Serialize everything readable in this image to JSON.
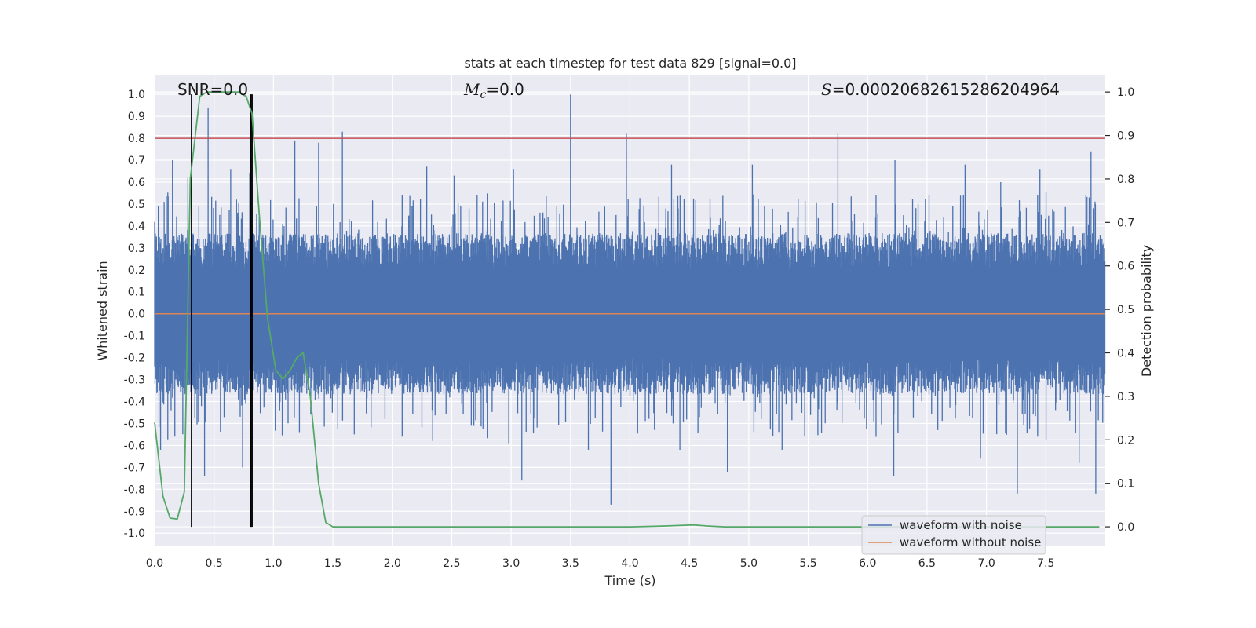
{
  "chart_data": {
    "type": "line",
    "title": "stats at each timestep for test data 829 [signal=0.0]",
    "xlabel": "Time (s)",
    "ylabel": "Whitened strain",
    "y2label": "Detection probability",
    "xlim": [
      0.0,
      8.0
    ],
    "ylim": [
      -1.06,
      1.09
    ],
    "y2lim": [
      -0.045,
      1.04
    ],
    "xticks": [
      "0.0",
      "0.5",
      "1.0",
      "1.5",
      "2.0",
      "2.5",
      "3.0",
      "3.5",
      "4.0",
      "4.5",
      "5.0",
      "5.5",
      "6.0",
      "6.5",
      "7.0",
      "7.5"
    ],
    "yticks": [
      "1.0",
      "0.9",
      "0.8",
      "0.7",
      "0.6",
      "0.5",
      "0.4",
      "0.3",
      "0.2",
      "0.1",
      "0.0",
      "-0.1",
      "-0.2",
      "-0.3",
      "-0.4",
      "-0.5",
      "-0.6",
      "-0.7",
      "-0.8",
      "-0.9",
      "-1.0"
    ],
    "y2ticks": [
      "1.0",
      "0.9",
      "0.8",
      "0.7",
      "0.6",
      "0.5",
      "0.4",
      "0.3",
      "0.2",
      "0.1",
      "0.0"
    ],
    "annotations": {
      "snr": "SNR=0.0",
      "mc_symbol": "M",
      "mc_sub": "c",
      "mc_value": "=0.0",
      "s_symbol": "S",
      "s_value": "=0.00020682615286204964"
    },
    "threshold": {
      "y": 0.8,
      "color": "#c44e52"
    },
    "vlines": [
      0.31,
      0.81,
      0.82
    ],
    "series": [
      {
        "name": "waveform with noise",
        "color": "#4c72b0",
        "description": "dense whitened noise, mostly within ±0.35",
        "spikes": [
          [
            0.08,
            0.51
          ],
          [
            0.15,
            0.7
          ],
          [
            0.28,
            0.62
          ],
          [
            0.31,
            0.68
          ],
          [
            0.45,
            0.94
          ],
          [
            0.64,
            0.66
          ],
          [
            0.8,
            0.64
          ],
          [
            1.18,
            0.79
          ],
          [
            1.38,
            0.78
          ],
          [
            1.58,
            0.83
          ],
          [
            2.29,
            0.67
          ],
          [
            2.52,
            0.63
          ],
          [
            3.02,
            0.66
          ],
          [
            3.5,
            1.0
          ],
          [
            3.97,
            0.82
          ],
          [
            4.35,
            0.68
          ],
          [
            5.03,
            0.68
          ],
          [
            5.75,
            0.82
          ],
          [
            6.23,
            0.7
          ],
          [
            6.82,
            0.68
          ],
          [
            7.12,
            0.6
          ],
          [
            7.45,
            0.66
          ],
          [
            7.88,
            0.74
          ],
          [
            0.05,
            -0.62
          ],
          [
            0.17,
            -0.56
          ],
          [
            0.42,
            -0.74
          ],
          [
            0.74,
            -0.7
          ],
          [
            0.82,
            -0.96
          ],
          [
            1.68,
            -0.55
          ],
          [
            2.34,
            -0.58
          ],
          [
            2.98,
            -0.59
          ],
          [
            3.09,
            -0.76
          ],
          [
            3.65,
            -0.62
          ],
          [
            3.84,
            -0.87
          ],
          [
            4.42,
            -0.62
          ],
          [
            4.82,
            -0.72
          ],
          [
            5.28,
            -0.62
          ],
          [
            6.22,
            -0.74
          ],
          [
            6.95,
            -0.66
          ],
          [
            7.26,
            -0.82
          ],
          [
            7.78,
            -0.68
          ],
          [
            7.92,
            -0.82
          ]
        ]
      },
      {
        "name": "waveform without noise",
        "color": "#dd8452",
        "values_note": "flat at 0.0"
      },
      {
        "name": "detection probability",
        "color": "#55a868",
        "axis": "y2",
        "x": [
          0.0,
          0.07,
          0.13,
          0.19,
          0.25,
          0.3,
          0.38,
          0.44,
          0.55,
          0.7,
          0.77,
          0.82,
          0.88,
          0.95,
          1.02,
          1.08,
          1.14,
          1.2,
          1.25,
          1.31,
          1.38,
          1.44,
          1.5,
          1.57,
          1.65,
          2.0,
          3.0,
          4.0,
          4.3,
          4.5,
          4.55,
          4.65,
          4.8,
          5.0,
          6.0,
          7.0,
          7.95
        ],
        "y": [
          0.24,
          0.07,
          0.02,
          0.018,
          0.08,
          0.8,
          0.99,
          1.0,
          1.0,
          1.0,
          0.99,
          0.95,
          0.72,
          0.48,
          0.36,
          0.34,
          0.36,
          0.39,
          0.4,
          0.3,
          0.1,
          0.01,
          0.0,
          0.0,
          0.0,
          0.0,
          0.0,
          0.0,
          0.002,
          0.004,
          0.004,
          0.002,
          0.0,
          0.0,
          0.0,
          0.0,
          0.0
        ]
      }
    ],
    "legend": {
      "position": "bottom-right",
      "entries": [
        {
          "label": "waveform with noise",
          "color": "#4c72b0"
        },
        {
          "label": "waveform without noise",
          "color": "#dd8452"
        }
      ]
    }
  }
}
